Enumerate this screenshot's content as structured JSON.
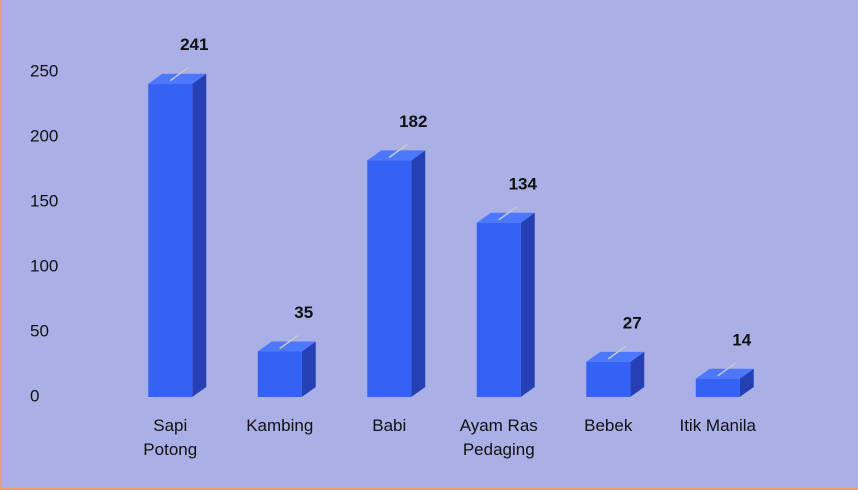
{
  "chart_data": {
    "type": "bar3d",
    "categories": [
      "Sapi\nPotong",
      "Kambing",
      "Babi",
      "Ayam Ras\nPedaging",
      "Bebek",
      "Itik Manila"
    ],
    "values": [
      241,
      35,
      182,
      134,
      27,
      14
    ],
    "color": "#3462f4",
    "ylim": [
      0,
      250
    ],
    "yticks": [
      0,
      50,
      100,
      150,
      200,
      250
    ],
    "grid": false
  }
}
